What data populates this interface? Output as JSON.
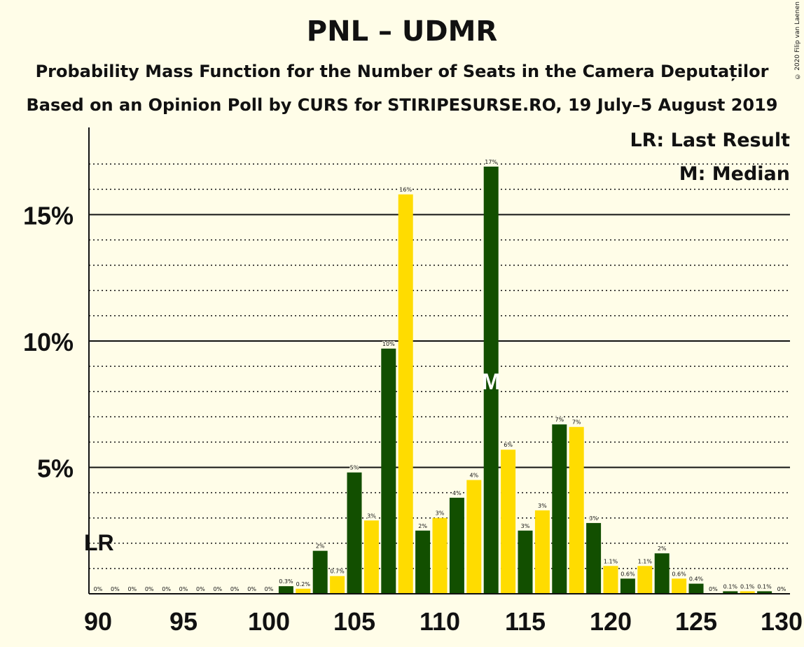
{
  "title": "PNL – UDMR",
  "subtitle": "Probability Mass Function for the Number of Seats in the Camera Deputaților",
  "subtitle2": "Based on an Opinion Poll by CURS for STIRIPESURSE.RO, 19 July–5 August 2019",
  "copyright": "© 2020 Filip van Laenen",
  "legend": {
    "lr": "LR: Last Result",
    "median": "M: Median"
  },
  "markers": {
    "last_result_label": "LR",
    "last_result_seat": 90,
    "median_label": "M",
    "median_seat": 113
  },
  "colors": {
    "green": "#124F00",
    "yellow": "#FFDC00",
    "background": "#FFFDE8"
  },
  "chart_data": {
    "type": "bar",
    "xlabel": "",
    "ylabel": "",
    "ylim": [
      0,
      18
    ],
    "y_ticks": [
      {
        "value": 5,
        "label": "5%"
      },
      {
        "value": 10,
        "label": "10%"
      },
      {
        "value": 15,
        "label": "15%"
      }
    ],
    "x_ticks": [
      90,
      95,
      100,
      105,
      110,
      115,
      120,
      125,
      130
    ],
    "bars": [
      {
        "seat": 90,
        "value": 0,
        "label": "0%"
      },
      {
        "seat": 91,
        "value": 0,
        "label": "0%"
      },
      {
        "seat": 92,
        "value": 0,
        "label": "0%"
      },
      {
        "seat": 93,
        "value": 0,
        "label": "0%"
      },
      {
        "seat": 94,
        "value": 0,
        "label": "0%"
      },
      {
        "seat": 95,
        "value": 0,
        "label": "0%"
      },
      {
        "seat": 96,
        "value": 0,
        "label": "0%"
      },
      {
        "seat": 97,
        "value": 0,
        "label": "0%"
      },
      {
        "seat": 98,
        "value": 0,
        "label": "0%"
      },
      {
        "seat": 99,
        "value": 0,
        "label": "0%"
      },
      {
        "seat": 100,
        "value": 0,
        "label": "0%"
      },
      {
        "seat": 101,
        "value": 0.3,
        "label": "0.3%"
      },
      {
        "seat": 102,
        "value": 0.2,
        "label": "0.2%"
      },
      {
        "seat": 103,
        "value": 1.7,
        "label": "2%"
      },
      {
        "seat": 104,
        "value": 0.7,
        "label": "0.7%"
      },
      {
        "seat": 105,
        "value": 4.8,
        "label": "5%"
      },
      {
        "seat": 106,
        "value": 2.9,
        "label": "3%"
      },
      {
        "seat": 107,
        "value": 9.7,
        "label": "10%"
      },
      {
        "seat": 108,
        "value": 15.8,
        "label": "16%"
      },
      {
        "seat": 109,
        "value": 2.5,
        "label": "2%"
      },
      {
        "seat": 110,
        "value": 3.0,
        "label": "3%"
      },
      {
        "seat": 111,
        "value": 3.8,
        "label": "4%"
      },
      {
        "seat": 112,
        "value": 4.5,
        "label": "4%"
      },
      {
        "seat": 113,
        "value": 16.9,
        "label": "17%"
      },
      {
        "seat": 114,
        "value": 5.7,
        "label": "6%"
      },
      {
        "seat": 115,
        "value": 2.5,
        "label": "3%"
      },
      {
        "seat": 116,
        "value": 3.3,
        "label": "3%"
      },
      {
        "seat": 117,
        "value": 6.7,
        "label": "7%"
      },
      {
        "seat": 118,
        "value": 6.6,
        "label": "7%"
      },
      {
        "seat": 119,
        "value": 2.8,
        "label": "3%"
      },
      {
        "seat": 120,
        "value": 1.1,
        "label": "1.1%"
      },
      {
        "seat": 121,
        "value": 0.6,
        "label": "0.6%"
      },
      {
        "seat": 122,
        "value": 1.1,
        "label": "1.1%"
      },
      {
        "seat": 123,
        "value": 1.6,
        "label": "2%"
      },
      {
        "seat": 124,
        "value": 0.6,
        "label": "0.6%"
      },
      {
        "seat": 125,
        "value": 0.4,
        "label": "0.4%"
      },
      {
        "seat": 126,
        "value": 0,
        "label": "0%"
      },
      {
        "seat": 127,
        "value": 0.1,
        "label": "0.1%"
      },
      {
        "seat": 128,
        "value": 0.1,
        "label": "0.1%"
      },
      {
        "seat": 129,
        "value": 0.1,
        "label": "0.1%"
      },
      {
        "seat": 130,
        "value": 0,
        "label": "0%"
      }
    ]
  }
}
